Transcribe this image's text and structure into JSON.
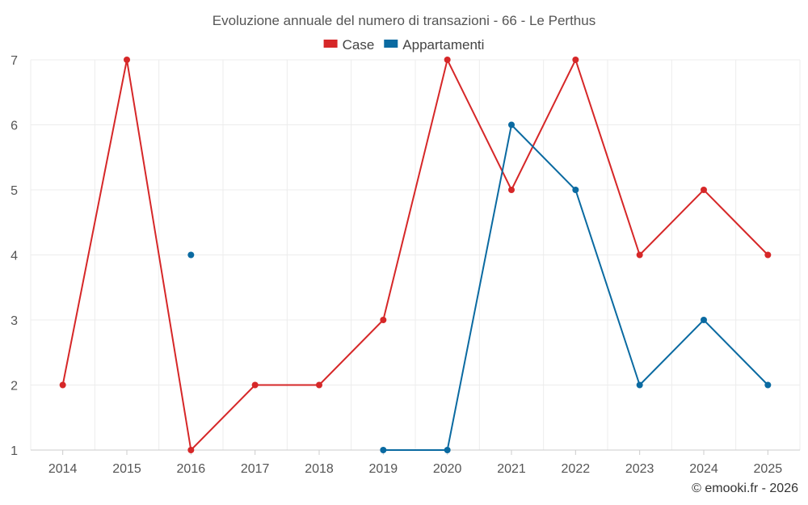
{
  "chart_data": {
    "type": "line",
    "title": "Evoluzione annuale del numero di transazioni - 66 - Le Perthus",
    "categories": [
      "2014",
      "2015",
      "2016",
      "2017",
      "2018",
      "2019",
      "2020",
      "2021",
      "2022",
      "2023",
      "2024",
      "2025"
    ],
    "ylim": [
      1,
      7
    ],
    "yticks": [
      1,
      2,
      3,
      4,
      5,
      6,
      7
    ],
    "grid": true,
    "legend_position": "top-center",
    "series": [
      {
        "name": "Case",
        "color": "#d62728",
        "values": [
          2,
          7,
          1,
          2,
          2,
          3,
          7,
          5,
          7,
          4,
          5,
          4
        ]
      },
      {
        "name": "Appartamenti",
        "color": "#0a6aa1",
        "values": [
          null,
          null,
          4,
          null,
          null,
          1,
          1,
          6,
          5,
          2,
          3,
          2
        ]
      }
    ],
    "credit": "© emooki.fr - 2026"
  }
}
